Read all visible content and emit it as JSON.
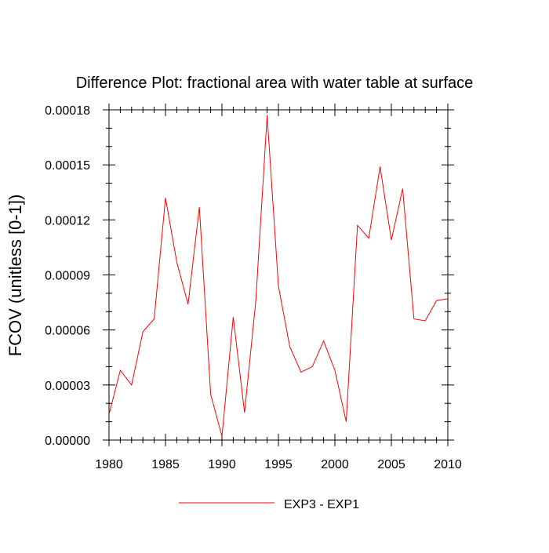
{
  "chart_data": {
    "type": "line",
    "title": "Difference Plot: fractional area with water table at surface",
    "xlabel": "",
    "ylabel": "FCOV  (unitless [0-1])",
    "xlim": [
      1980,
      2010
    ],
    "ylim": [
      0,
      0.00018
    ],
    "x_ticks": [
      1980,
      1985,
      1990,
      1995,
      2000,
      2005,
      2010
    ],
    "x_tick_labels": [
      "1980",
      "1985",
      "1990",
      "1995",
      "2000",
      "2005",
      "2010"
    ],
    "y_ticks": [
      0,
      3e-05,
      6e-05,
      9e-05,
      0.00012,
      0.00015,
      0.00018
    ],
    "y_tick_labels": [
      "0.00000",
      "0.00003",
      "0.00006",
      "0.00009",
      "0.00012",
      "0.00015",
      "0.00018"
    ],
    "grid": false,
    "legend_position": "bottom-center",
    "series": [
      {
        "name": "EXP3 - EXP1",
        "color": "#ff0000",
        "x": [
          1980,
          1981,
          1982,
          1983,
          1984,
          1985,
          1986,
          1987,
          1988,
          1989,
          1990,
          1991,
          1992,
          1993,
          1994,
          1995,
          1996,
          1997,
          1998,
          1999,
          2000,
          2001,
          2002,
          2003,
          2004,
          2005,
          2006,
          2007,
          2008,
          2009,
          2010
        ],
        "values": [
          1.4e-05,
          3.8e-05,
          3e-05,
          5.9e-05,
          6.6e-05,
          0.000132,
          9.7e-05,
          7.4e-05,
          0.000127,
          2.5e-05,
          2e-06,
          6.7e-05,
          1.5e-05,
          7.6e-05,
          0.000177,
          8.4e-05,
          5.1e-05,
          3.7e-05,
          4e-05,
          5.4e-05,
          3.8e-05,
          1e-05,
          0.000117,
          0.00011,
          0.000149,
          0.000109,
          0.000137,
          6.6e-05,
          6.5e-05,
          7.6e-05,
          7.7e-05
        ]
      }
    ]
  }
}
